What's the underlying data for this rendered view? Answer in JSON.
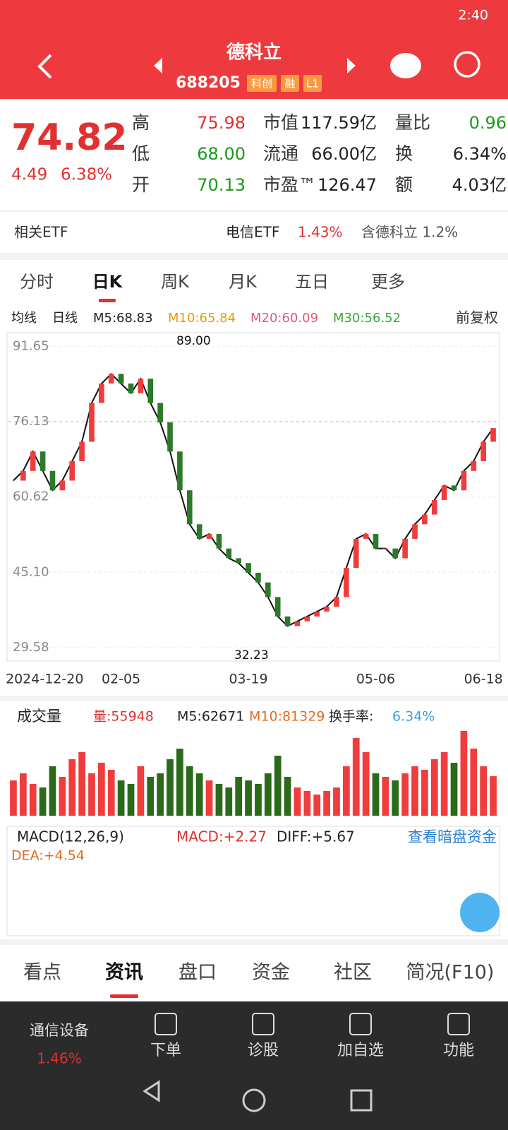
{
  "status": {
    "time": "2:40"
  },
  "header": {
    "name": "德科立",
    "code": "688205",
    "tags": [
      "科创",
      "融",
      "L1"
    ]
  },
  "quote": {
    "price": "74.82",
    "change": "4.49",
    "pct": "6.38%",
    "stats": [
      [
        {
          "label": "高",
          "value": "75.98",
          "color": "#e03030"
        },
        {
          "label": "市值",
          "value": "117.59亿",
          "color": "#222"
        },
        {
          "label": "量比",
          "value": "0.96",
          "color": "#1a9a1a"
        }
      ],
      [
        {
          "label": "低",
          "value": "68.00",
          "color": "#1a9a1a"
        },
        {
          "label": "流通",
          "value": "66.00亿",
          "color": "#222"
        },
        {
          "label": "换",
          "value": "6.34%",
          "color": "#222"
        }
      ],
      [
        {
          "label": "开",
          "value": "70.13",
          "color": "#1a9a1a"
        },
        {
          "label": "市盈™",
          "value": "126.47",
          "color": "#222"
        },
        {
          "label": "额",
          "value": "4.03亿",
          "color": "#222"
        }
      ]
    ]
  },
  "etf": {
    "label": "相关ETF",
    "name": "电信ETF",
    "pct": "1.43%",
    "contain": "含德科立 1.2%"
  },
  "tabs": [
    "分时",
    "日K",
    "周K",
    "月K",
    "五日",
    "更多"
  ],
  "ma_bar": {
    "items": [
      "均线",
      "日线",
      "M5:68.83",
      "M10:65.84",
      "M20:60.09",
      "M30:56.52"
    ],
    "colors": [
      "#222",
      "#222",
      "#222",
      "#e0a000",
      "#e05a7a",
      "#3aa83a"
    ],
    "adjust": "前复权"
  },
  "chart_data": {
    "type": "line",
    "color": "#111",
    "categories": [
      "2024-12-20",
      null,
      null,
      null,
      null,
      null,
      null,
      null,
      null,
      null,
      null,
      "02-05",
      null,
      null,
      null,
      null,
      null,
      null,
      null,
      null,
      null,
      null,
      null,
      null,
      "03-19",
      null,
      null,
      null,
      null,
      null,
      null,
      null,
      null,
      null,
      null,
      null,
      null,
      "05-06",
      null,
      null,
      null,
      null,
      null,
      null,
      null,
      null,
      null,
      null,
      "06-18",
      null
    ],
    "values": [
      64,
      66,
      70,
      66,
      62,
      64,
      68,
      72,
      80,
      84,
      86,
      84,
      82,
      85,
      80,
      76,
      70,
      62,
      55,
      52,
      53,
      50,
      48,
      47,
      45,
      43,
      40,
      36,
      34,
      35,
      36,
      37,
      38,
      40,
      46,
      52,
      53,
      50,
      50,
      48,
      52,
      55,
      57,
      60,
      63,
      62,
      66,
      68,
      72,
      74.82
    ],
    "ylim": [
      26.8,
      94.5
    ],
    "yticks": [
      {
        "value": 91.65,
        "label": "91.65"
      },
      {
        "value": 76.13,
        "label": "76.13"
      },
      {
        "value": 60.62,
        "label": "60.62"
      },
      {
        "value": 45.1,
        "label": "45.10"
      },
      {
        "value": 29.58,
        "label": "29.58"
      }
    ],
    "annotations": [
      "89.00",
      "32.23"
    ]
  },
  "volume": {
    "title": "成交量",
    "items": [
      "量:55948",
      "M5:62671",
      "M10:81329",
      "换手率:",
      "6.34%"
    ],
    "values": [
      50000,
      60000,
      45000,
      40000,
      70000,
      55000,
      80000,
      90000,
      60000,
      75000,
      65000,
      50000,
      45000,
      70000,
      55000,
      60000,
      80000,
      95000,
      70000,
      60000,
      50000,
      45000,
      40000,
      55000,
      50000,
      45000,
      60000,
      85000,
      55000,
      40000,
      35000,
      30000,
      35000,
      40000,
      70000,
      110000,
      90000,
      60000,
      55000,
      50000,
      60000,
      70000,
      65000,
      80000,
      90000,
      75000,
      120000,
      95000,
      70000,
      55948
    ],
    "ylim": [
      0,
      125000
    ]
  },
  "macd": {
    "title": "MACD(12,26,9)",
    "macd": "MACD:+2.27",
    "diff": "DIFF:+5.67",
    "dea": "DEA:+4.54",
    "link": "查看暗盘资金"
  },
  "bottom_tabs": [
    "看点",
    "资讯",
    "盘口",
    "资金",
    "社区",
    "简况(F10)"
  ],
  "nav": {
    "sector": "通信设备",
    "sector_pct": "1.46%",
    "items": [
      "下单",
      "诊股",
      "加自选",
      "功能"
    ]
  }
}
